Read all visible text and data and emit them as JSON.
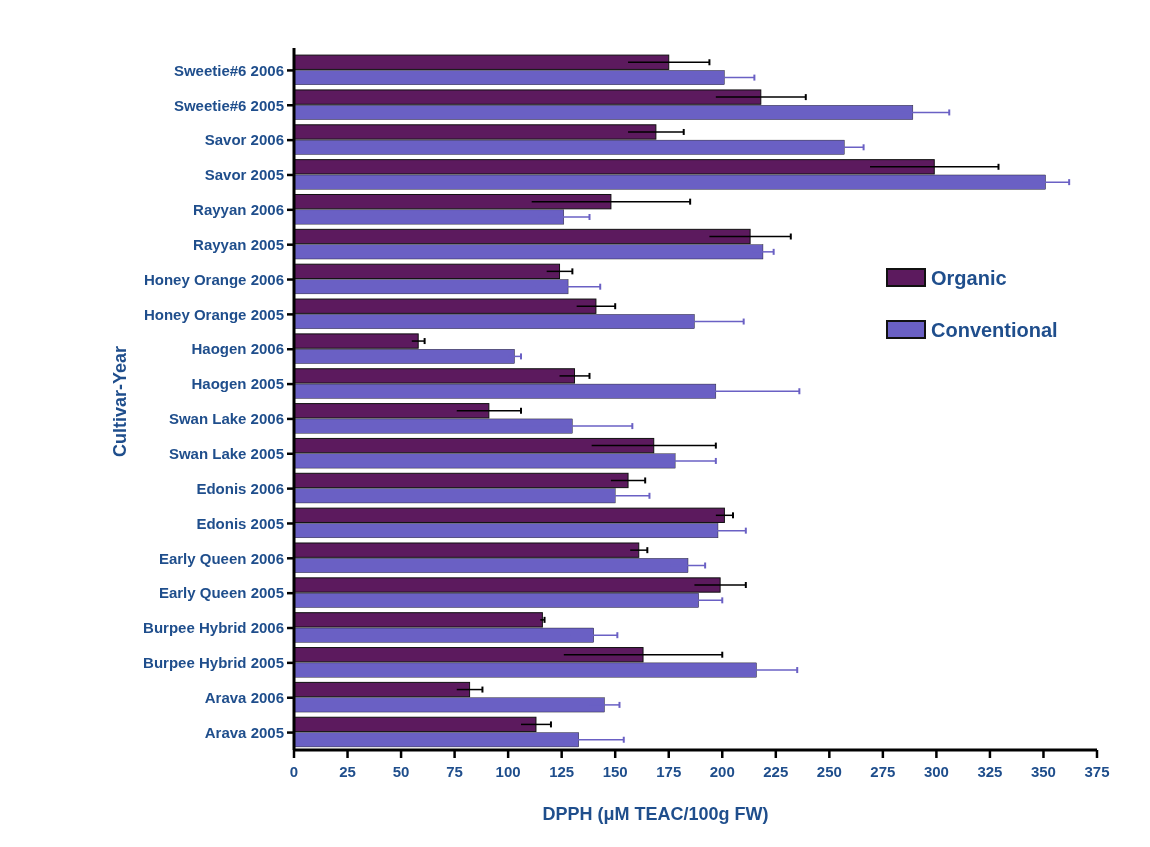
{
  "chart_data": {
    "type": "bar",
    "orientation": "horizontal",
    "xlabel": "DPPH (μM TEAC/100g FW)",
    "ylabel": "Cultivar-Year",
    "categories": [
      "Sweetie#6 2006",
      "Sweetie#6 2005",
      "Savor 2006",
      "Savor 2005",
      "Rayyan 2006",
      "Rayyan 2005",
      "Honey Orange 2006",
      "Honey Orange 2005",
      "Haogen 2006",
      "Haogen 2005",
      "Swan Lake 2006",
      "Swan Lake 2005",
      "Edonis 2006",
      "Edonis 2005",
      "Early Queen 2006",
      "Early Queen 2005",
      "Burpee Hybrid 2006",
      "Burpee Hybrid 2005",
      "Arava 2006",
      "Arava 2005"
    ],
    "series": [
      {
        "name": "Organic",
        "color": "#5c1a5e",
        "values": [
          175,
          218,
          169,
          299,
          148,
          213,
          124,
          141,
          58,
          131,
          91,
          168,
          156,
          201,
          161,
          199,
          116,
          163,
          82,
          113
        ],
        "errors": [
          19,
          21,
          13,
          30,
          37,
          19,
          6,
          9,
          3,
          7,
          15,
          29,
          8,
          4,
          4,
          12,
          1,
          37,
          6,
          7
        ]
      },
      {
        "name": "Conventional",
        "color": "#6a60c4",
        "values": [
          201,
          289,
          257,
          351,
          126,
          219,
          128,
          187,
          103,
          197,
          130,
          178,
          150,
          198,
          184,
          189,
          140,
          216,
          145,
          133
        ],
        "errors": [
          14,
          17,
          9,
          11,
          12,
          5,
          15,
          23,
          3,
          39,
          28,
          19,
          16,
          13,
          8,
          11,
          11,
          19,
          7,
          21
        ]
      }
    ],
    "xlim": [
      0,
      375
    ],
    "xticks": [
      0,
      25,
      50,
      75,
      100,
      125,
      150,
      175,
      200,
      225,
      250,
      275,
      300,
      325,
      350,
      375
    ],
    "legend": "right"
  }
}
